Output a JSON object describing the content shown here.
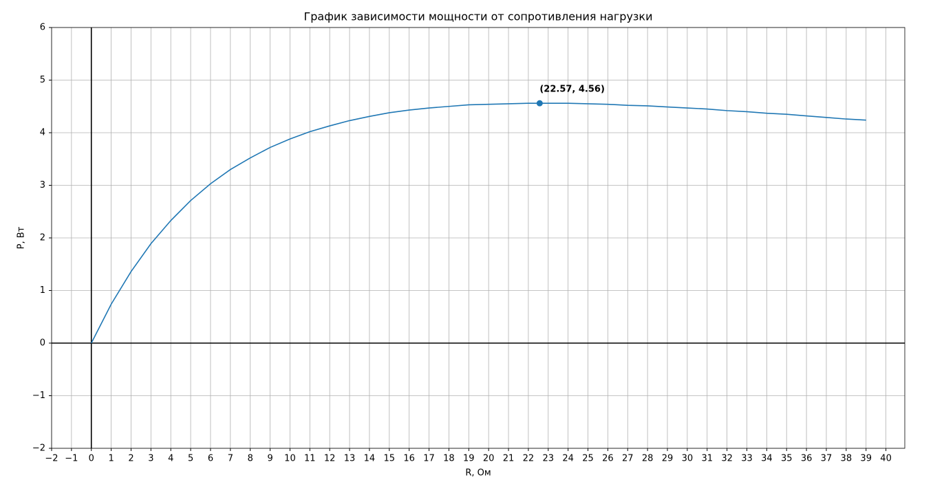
{
  "chart_data": {
    "type": "line",
    "title": "График зависимости мощности от сопротивления нагрузки",
    "xlabel": "R, Ом",
    "ylabel": "P, Вт",
    "x": [
      0,
      1,
      2,
      3,
      4,
      5,
      6,
      7,
      8,
      9,
      10,
      11,
      12,
      13,
      14,
      15,
      16,
      17,
      18,
      19,
      20,
      21,
      22,
      23,
      24,
      25,
      26,
      27,
      28,
      29,
      30,
      31,
      32,
      33,
      34,
      35,
      36,
      37,
      38,
      39
    ],
    "values": [
      0,
      0.74,
      1.36,
      1.89,
      2.33,
      2.71,
      3.03,
      3.3,
      3.52,
      3.72,
      3.88,
      4.02,
      4.13,
      4.23,
      4.31,
      4.38,
      4.43,
      4.47,
      4.5,
      4.53,
      4.54,
      4.55,
      4.56,
      4.56,
      4.56,
      4.55,
      4.54,
      4.52,
      4.51,
      4.49,
      4.47,
      4.45,
      4.42,
      4.4,
      4.37,
      4.35,
      4.32,
      4.29,
      4.26,
      4.24
    ],
    "color": "#1f77b4",
    "annotation": {
      "x": 22.57,
      "y": 4.56,
      "label": "(22.57, 4.56)"
    },
    "xlim": [
      -2,
      40.95
    ],
    "ylim": [
      -2,
      6
    ],
    "xticks": [
      {
        "value": -2,
        "label": "−2"
      },
      {
        "value": -1,
        "label": "−1"
      },
      0,
      1,
      2,
      3,
      4,
      5,
      6,
      7,
      8,
      9,
      10,
      11,
      12,
      13,
      14,
      15,
      16,
      17,
      18,
      19,
      20,
      21,
      22,
      23,
      24,
      25,
      26,
      27,
      28,
      29,
      30,
      31,
      32,
      33,
      34,
      35,
      36,
      37,
      38,
      39,
      40
    ],
    "yticks": [
      {
        "value": -2,
        "label": "−2"
      },
      {
        "value": -1,
        "label": "−1"
      },
      0,
      1,
      2,
      3,
      4,
      5,
      6
    ],
    "grid": true,
    "zero_axes": true
  }
}
